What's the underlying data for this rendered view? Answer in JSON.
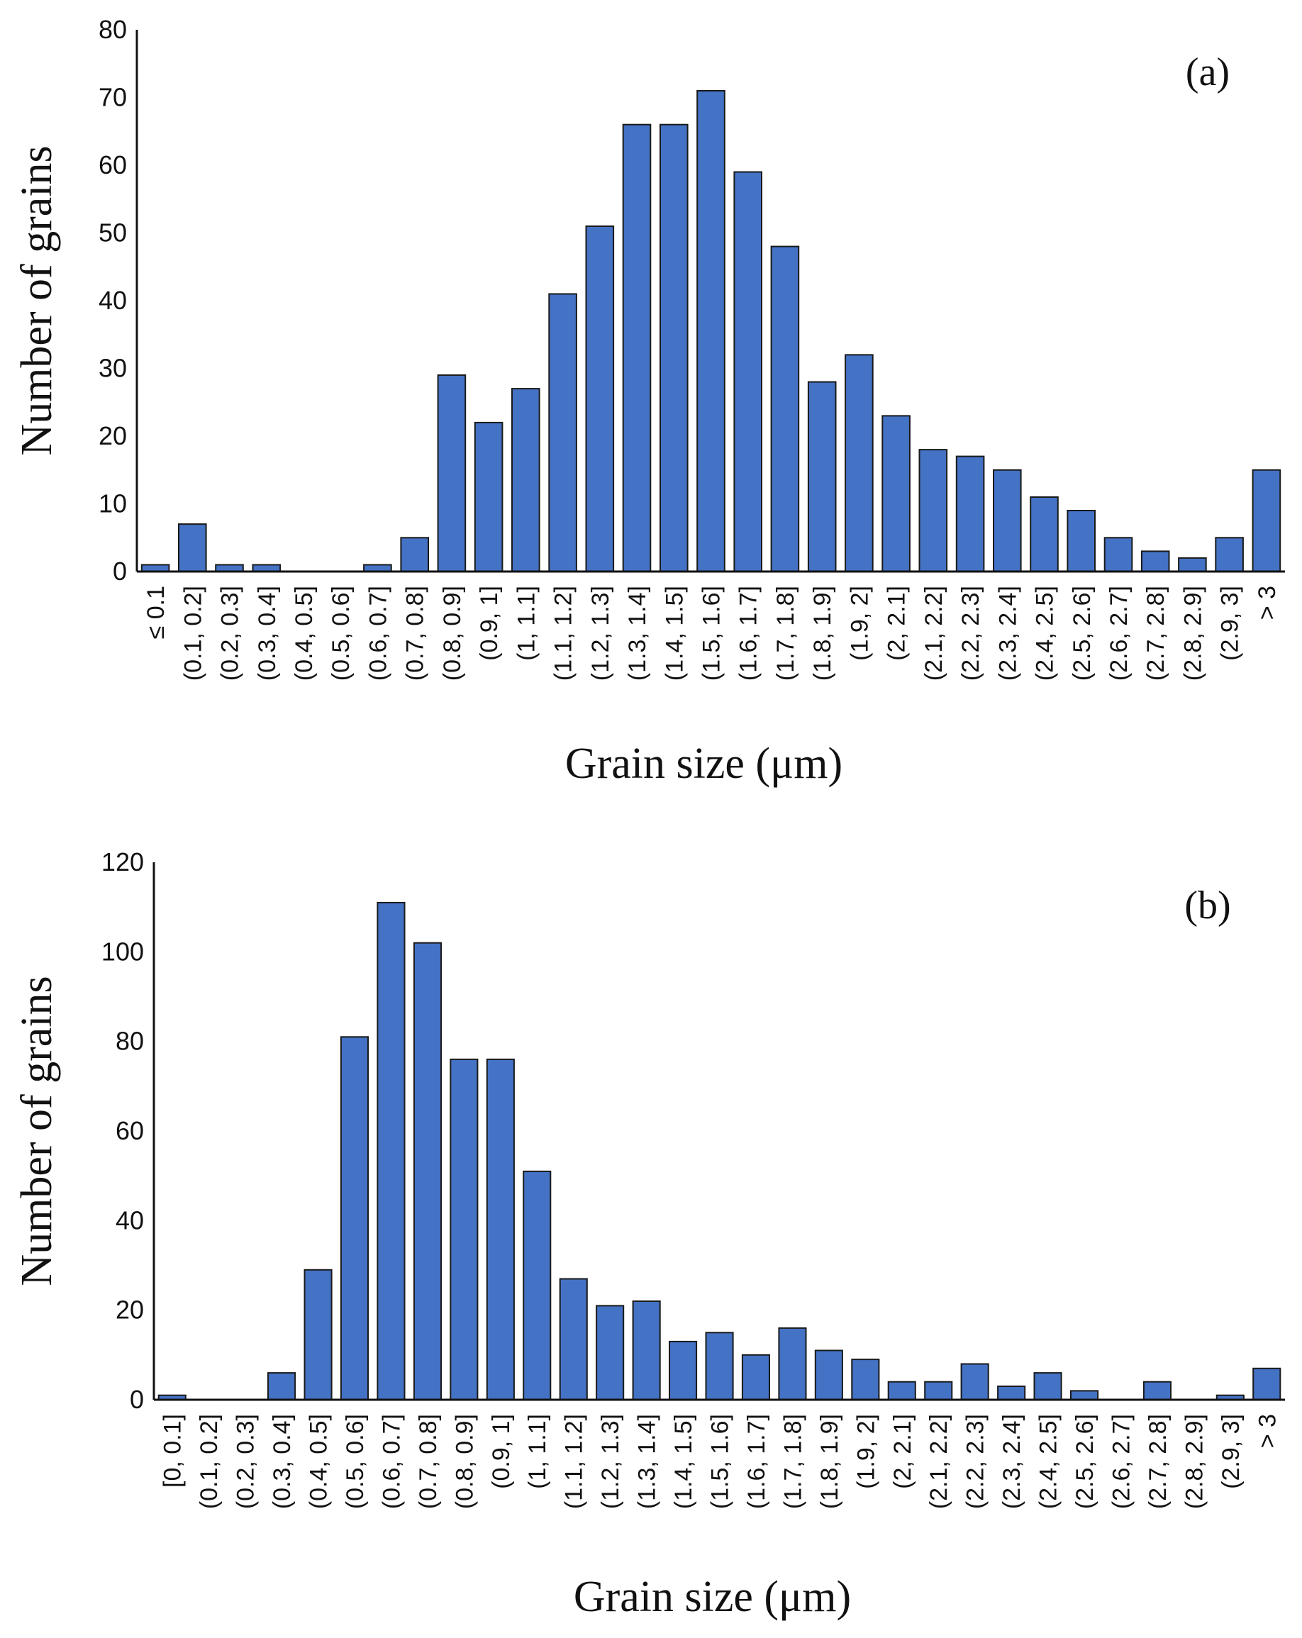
{
  "chart_data": [
    {
      "type": "bar",
      "panel_label": "(a)",
      "xlabel": "Grain size (μm)",
      "ylabel": "Number of grains",
      "ylim": [
        0,
        80
      ],
      "yticks": [
        "0",
        "10",
        "20",
        "30",
        "40",
        "50",
        "60",
        "70",
        "80"
      ],
      "bar_color": "#4472c4",
      "categories": [
        "≤ 0.1",
        "(0.1, 0.2]",
        "(0.2, 0.3]",
        "(0.3, 0.4]",
        "(0.4, 0.5]",
        "(0.5, 0.6]",
        "(0.6, 0.7]",
        "(0.7, 0.8]",
        "(0.8, 0.9]",
        "(0.9, 1]",
        "(1, 1.1]",
        "(1.1, 1.2]",
        "(1.2, 1.3]",
        "(1.3, 1.4]",
        "(1.4, 1.5]",
        "(1.5, 1.6]",
        "(1.6, 1.7]",
        "(1.7, 1.8]",
        "(1.8, 1.9]",
        "(1.9, 2]",
        "(2, 2.1]",
        "(2.1, 2.2]",
        "(2.2, 2.3]",
        "(2.3, 2.4]",
        "(2.4, 2.5]",
        "(2.5, 2.6]",
        "(2.6, 2.7]",
        "(2.7, 2.8]",
        "(2.8, 2.9]",
        "(2.9, 3]",
        "> 3"
      ],
      "values": [
        1,
        7,
        1,
        1,
        0,
        0,
        1,
        5,
        29,
        22,
        27,
        41,
        51,
        66,
        66,
        71,
        59,
        48,
        28,
        32,
        23,
        18,
        17,
        15,
        11,
        9,
        5,
        3,
        2,
        5,
        15
      ]
    },
    {
      "type": "bar",
      "panel_label": "(b)",
      "xlabel": "Grain size (μm)",
      "ylabel": "Number of grains",
      "ylim": [
        0,
        120
      ],
      "yticks": [
        "0",
        "20",
        "40",
        "60",
        "80",
        "100",
        "120"
      ],
      "bar_color": "#4472c4",
      "categories": [
        "[0, 0.1]",
        "(0.1, 0.2]",
        "(0.2, 0.3]",
        "(0.3, 0.4]",
        "(0.4, 0.5]",
        "(0.5, 0.6]",
        "(0.6, 0.7]",
        "(0.7, 0.8]",
        "(0.8, 0.9]",
        "(0.9, 1]",
        "(1, 1.1]",
        "(1.1, 1.2]",
        "(1.2, 1.3]",
        "(1.3, 1.4]",
        "(1.4, 1.5]",
        "(1.5, 1.6]",
        "(1.6, 1.7]",
        "(1.7, 1.8]",
        "(1.8, 1.9]",
        "(1.9, 2]",
        "(2, 2.1]",
        "(2.1, 2.2]",
        "(2.2, 2.3]",
        "(2.3, 2.4]",
        "(2.4, 2.5]",
        "(2.5, 2.6]",
        "(2.6, 2.7]",
        "(2.7, 2.8]",
        "(2.8, 2.9]",
        "(2.9, 3]",
        "> 3"
      ],
      "values": [
        1,
        0,
        0,
        6,
        29,
        81,
        111,
        102,
        76,
        76,
        51,
        27,
        21,
        22,
        13,
        15,
        10,
        16,
        11,
        9,
        4,
        4,
        8,
        3,
        6,
        2,
        0,
        4,
        0,
        1,
        7
      ]
    }
  ]
}
